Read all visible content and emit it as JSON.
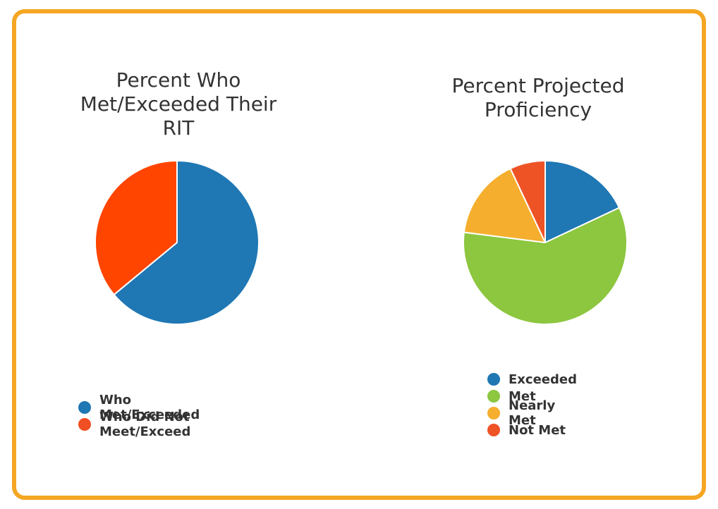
{
  "chart_data": [
    {
      "type": "pie",
      "title": "Percent Who Met/Exceeded Their RIT",
      "title_lines": [
        "Percent Who",
        "Met/Exceeded Their",
        "RIT"
      ],
      "legend_placement": "bottom",
      "categories": [
        "Who Met/Exceeded",
        "Who Did Not Meet/Exceed"
      ],
      "values": [
        64,
        36
      ],
      "colors": [
        "#1f77b4",
        "#ff4500"
      ],
      "legend_colors": [
        "#1f77b4",
        "#f04e23"
      ]
    },
    {
      "type": "pie",
      "title": "Percent Projected Proficiency",
      "title_lines": [
        "Percent Projected",
        "Proficiency"
      ],
      "legend_placement": "bottom",
      "categories": [
        "Exceeded",
        "Met",
        "Nearly Met",
        "Not Met"
      ],
      "values": [
        18,
        59,
        16,
        7
      ],
      "colors": [
        "#1f77b4",
        "#8dc63f",
        "#f5ae2d",
        "#ee5326"
      ],
      "legend_colors": [
        "#1f77b4",
        "#8dc63f",
        "#f5ae2d",
        "#ee5326"
      ]
    }
  ]
}
